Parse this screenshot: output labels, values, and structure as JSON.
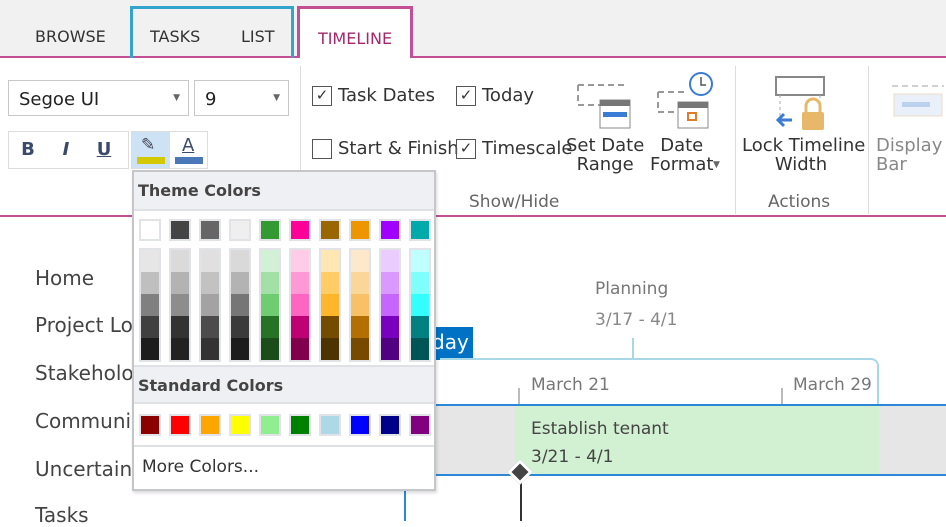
{
  "tabs": {
    "browse": "BROWSE",
    "tasks": "TASKS",
    "list": "LIST",
    "timeline": "TIMELINE"
  },
  "ribbon": {
    "font_name": "Segoe UI",
    "font_size": "9",
    "bold": "B",
    "italic": "I",
    "underline": "U",
    "font_color": "A",
    "highlight_color": "#d4c800",
    "font_color_bar": "#4a78b8",
    "checkboxes": [
      {
        "label": "Task Dates",
        "checked": true
      },
      {
        "label": "Today",
        "checked": true
      },
      {
        "label": "Start & Finish",
        "checked": false
      },
      {
        "label": "Timescale",
        "checked": true
      }
    ],
    "set_date_range": "Set Date\nRange",
    "date_format": "Date\nFormat",
    "lock_timeline_width": "Lock Timeline\nWidth",
    "display_as_bar": "Display a\nBar",
    "show_hide": "Show/Hide",
    "actions": "Actions"
  },
  "nav": [
    "Home",
    "Project Lo",
    "Stakeholo",
    "Communi",
    "Uncertain",
    "Tasks"
  ],
  "popup": {
    "theme_title": "Theme Colors",
    "theme_top": [
      "#ffffff",
      "#444444",
      "#666666",
      "#efefef",
      "#339933",
      "#ff0099",
      "#996600",
      "#ee9600",
      "#a100ff",
      "#00aaaa"
    ],
    "theme_shades": [
      [
        "#e6e6e6",
        "#bfbfbf",
        "#808080",
        "#404040",
        "#1c1c1c"
      ],
      [
        "#dadada",
        "#b3b3b3",
        "#8d8d8d",
        "#333333",
        "#222222"
      ],
      [
        "#e0e0e0",
        "#c2c2c2",
        "#a3a3a3",
        "#4c4c4c",
        "#333333"
      ],
      [
        "#d9d9d9",
        "#b3b3b3",
        "#767676",
        "#3b3b3b",
        "#1c1c1c"
      ],
      [
        "#d2f0d6",
        "#a3e0a5",
        "#70cc70",
        "#267326",
        "#1a4d1a"
      ],
      [
        "#ffcce8",
        "#ff99d6",
        "#ff66c2",
        "#bf0073",
        "#80004d"
      ],
      [
        "#ffe6b3",
        "#ffcc66",
        "#ffb62b",
        "#734c00",
        "#4d3300"
      ],
      [
        "#fde8cc",
        "#fbd699",
        "#f8c166",
        "#b36f00",
        "#774a00"
      ],
      [
        "#eaccff",
        "#d999ff",
        "#c766ff",
        "#7900bf",
        "#500080"
      ],
      [
        "#bfffff",
        "#80ffff",
        "#33ffff",
        "#008080",
        "#005555"
      ]
    ],
    "standard_title": "Standard Colors",
    "standard": [
      "#8b0000",
      "#ff0000",
      "#ffa500",
      "#ffff00",
      "#90ee90",
      "#008000",
      "#add8e6",
      "#0000ff",
      "#00008b",
      "#800080"
    ],
    "more_colors": "More Colors..."
  },
  "timeline": {
    "today": "Today",
    "phase": {
      "name": "Planning",
      "dates": "3/17 - 4/1"
    },
    "ticks": [
      "March 21",
      "March 29"
    ],
    "task": {
      "name": "Establish tenant",
      "dates": "3/21 - 4/1",
      "color": "#d2f0d2"
    }
  }
}
